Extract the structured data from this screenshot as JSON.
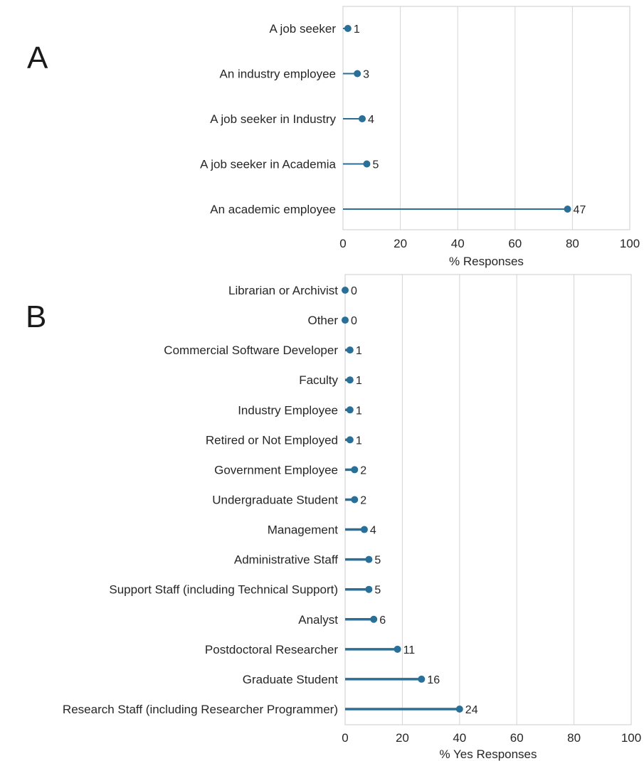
{
  "chart_data": [
    {
      "type": "lollipop",
      "panel_label": "A",
      "xlabel": "% Responses",
      "xlim": [
        0,
        100
      ],
      "xticks": [
        "0",
        "20",
        "40",
        "60",
        "80",
        "100"
      ],
      "grid": "vertical",
      "color": "#2a6f97",
      "categories": [
        "A job seeker",
        "An industry employee",
        "A job seeker in Industry",
        "A job seeker in Academia",
        "An academic employee"
      ],
      "values": [
        1.7,
        5,
        6.7,
        8.3,
        78.3
      ],
      "data_labels": [
        "1",
        "3",
        "4",
        "5",
        "47"
      ]
    },
    {
      "type": "lollipop",
      "panel_label": "B",
      "xlabel": "% Yes Responses",
      "xlim": [
        0,
        100
      ],
      "xticks": [
        "0",
        "20",
        "40",
        "60",
        "80",
        "100"
      ],
      "grid": "vertical",
      "color": "#2a6f97",
      "categories": [
        "Librarian or Archivist",
        "Other",
        "Commercial Software Developer",
        "Faculty",
        "Industry Employee",
        "Retired or Not Employed",
        "Government Employee",
        "Undergraduate Student",
        "Management",
        "Administrative Staff",
        "Support Staff (including Technical Support)",
        "Analyst",
        "Postdoctoral Researcher",
        "Graduate Student",
        "Research Staff (including Researcher Programmer)"
      ],
      "values": [
        0,
        0,
        1.7,
        1.7,
        1.7,
        1.7,
        3.3,
        3.3,
        6.7,
        8.3,
        8.3,
        10,
        18.3,
        26.7,
        40
      ],
      "data_labels": [
        "0",
        "0",
        "1",
        "1",
        "1",
        "1",
        "2",
        "2",
        "4",
        "5",
        "5",
        "6",
        "11",
        "16",
        "24"
      ]
    }
  ]
}
